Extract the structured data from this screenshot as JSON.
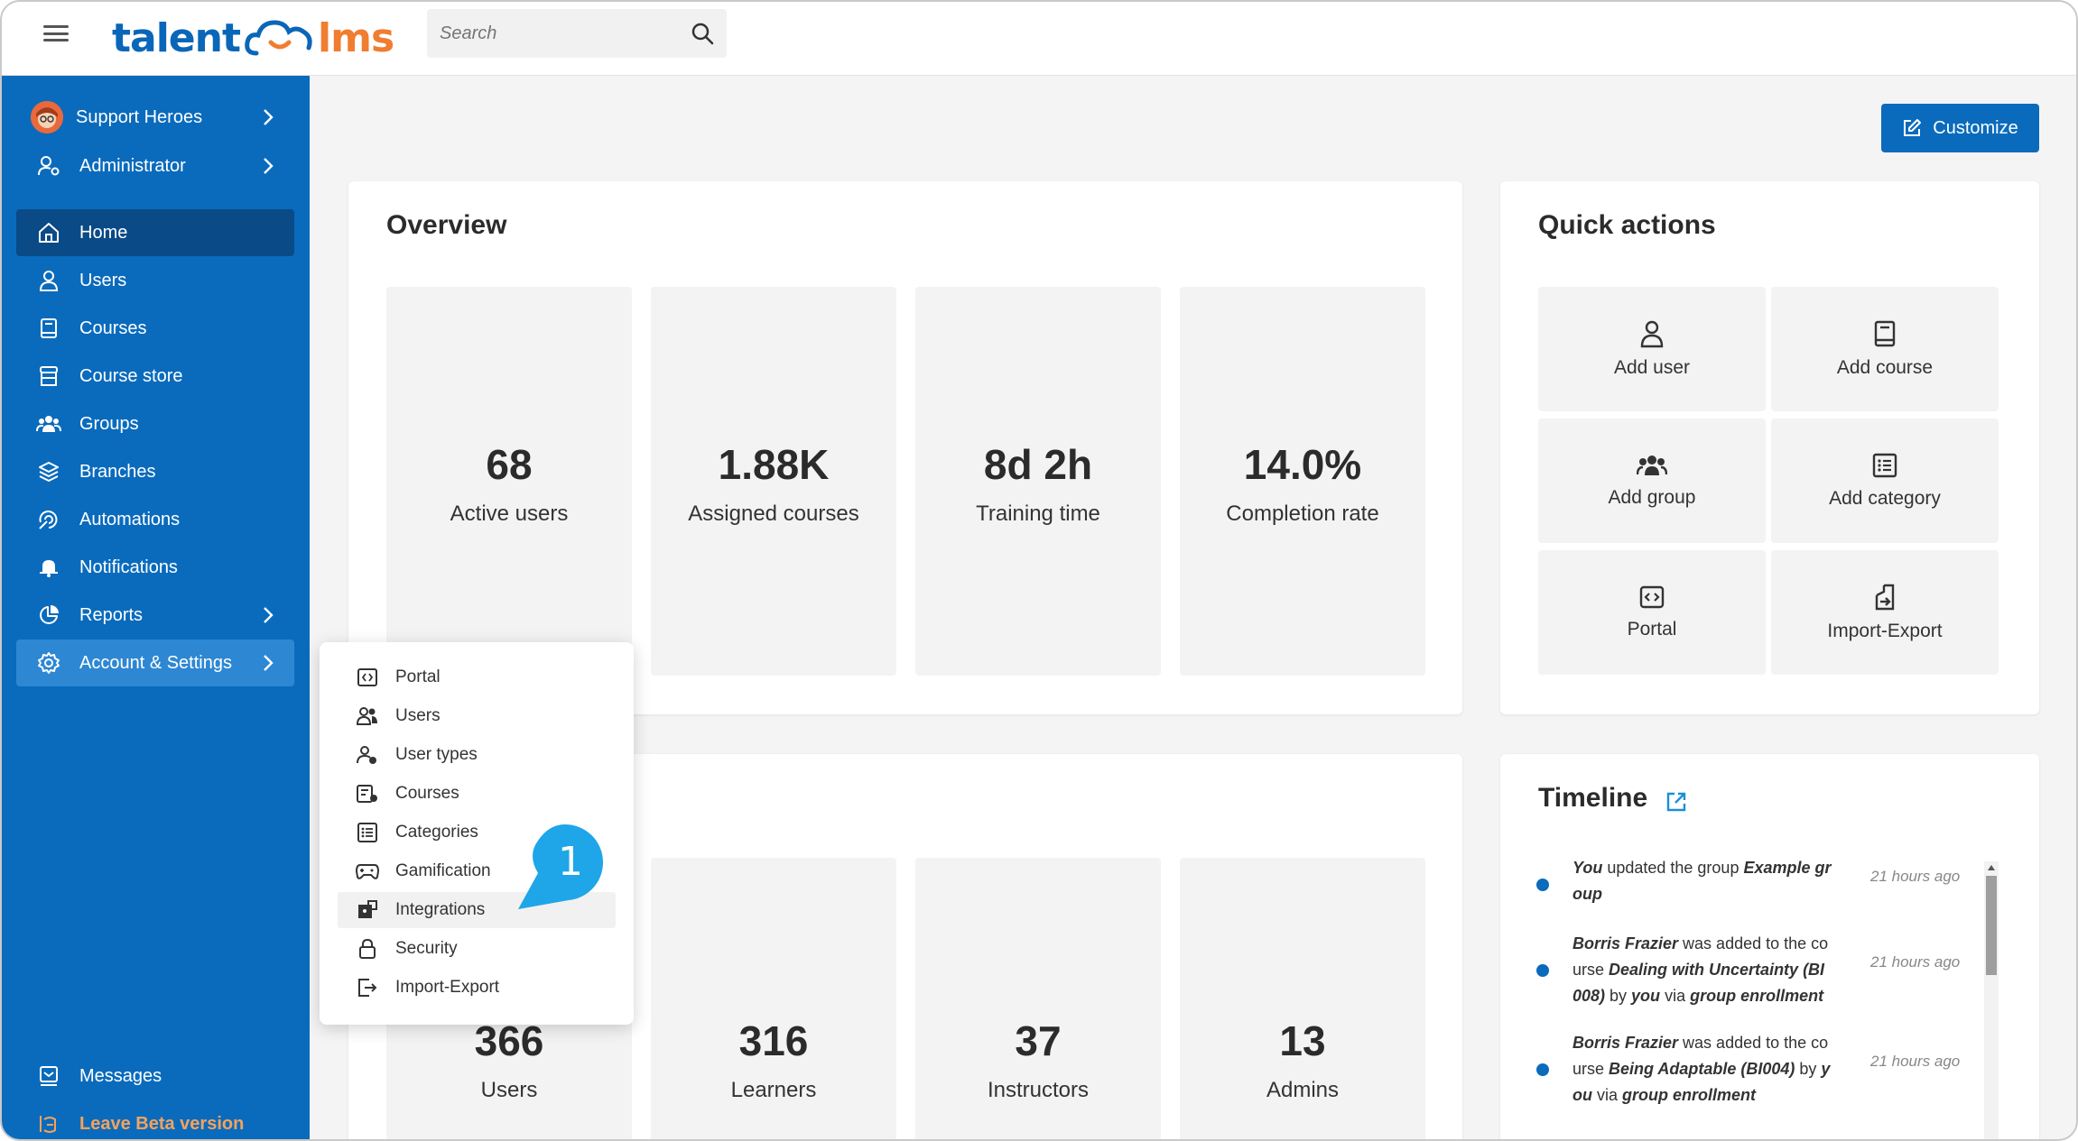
{
  "header": {
    "logo_left": "talent",
    "logo_right": "lms",
    "search_placeholder": "Search"
  },
  "sidebar": {
    "account": "Support Heroes",
    "role": "Administrator",
    "items": [
      {
        "label": "Home"
      },
      {
        "label": "Users"
      },
      {
        "label": "Courses"
      },
      {
        "label": "Course store"
      },
      {
        "label": "Groups"
      },
      {
        "label": "Branches"
      },
      {
        "label": "Automations"
      },
      {
        "label": "Notifications"
      },
      {
        "label": "Reports"
      },
      {
        "label": "Account & Settings"
      }
    ],
    "messages": "Messages",
    "beta": "Leave Beta version"
  },
  "customize_label": "Customize",
  "overview": {
    "title": "Overview",
    "stats": [
      {
        "value": "68",
        "label": "Active users"
      },
      {
        "value": "1.88K",
        "label": "Assigned courses"
      },
      {
        "value": "8d 2h",
        "label": "Training time"
      },
      {
        "value": "14.0%",
        "label": "Completion rate"
      }
    ]
  },
  "users_stats": [
    {
      "value": "366",
      "label": "Users"
    },
    {
      "value": "316",
      "label": "Learners"
    },
    {
      "value": "37",
      "label": "Instructors"
    },
    {
      "value": "13",
      "label": "Admins"
    }
  ],
  "quick_actions": {
    "title": "Quick actions",
    "items": [
      {
        "label": "Add user",
        "icon": "user-icon"
      },
      {
        "label": "Add course",
        "icon": "book-icon"
      },
      {
        "label": "Add group",
        "icon": "group-icon"
      },
      {
        "label": "Add category",
        "icon": "category-icon"
      },
      {
        "label": "Portal",
        "icon": "portal-icon"
      },
      {
        "label": "Import-Export",
        "icon": "import-export-icon"
      }
    ]
  },
  "timeline": {
    "title": "Timeline",
    "entries": [
      {
        "l1a": "You",
        "l1b": " updated the group ",
        "l1c": "Example gr",
        "l2": "oup",
        "time": "21 hours ago"
      },
      {
        "l1a": "Borris Frazier",
        "l1b": " was added to the co",
        "l2a": "urse ",
        "l2b": "Dealing with Uncertainty (BI",
        "l3a": "008)",
        "l3b": " by ",
        "l3c": "you",
        "l3d": " via ",
        "l3e": "group enrollment",
        "time": "21 hours ago"
      },
      {
        "l1a": "Borris Frazier",
        "l1b": " was added to the co",
        "l2a": "urse ",
        "l2b": "Being Adaptable (BI004)",
        "l2c": " by ",
        "l2d": "y",
        "l3a": "ou",
        "l3b": " via ",
        "l3c": "group enrollment",
        "time": "21 hours ago"
      }
    ]
  },
  "settings_menu": {
    "items": [
      {
        "label": "Portal"
      },
      {
        "label": "Users"
      },
      {
        "label": "User types"
      },
      {
        "label": "Courses"
      },
      {
        "label": "Categories"
      },
      {
        "label": "Gamification"
      },
      {
        "label": "Integrations"
      },
      {
        "label": "Security"
      },
      {
        "label": "Import-Export"
      }
    ]
  },
  "step_badge": "1",
  "colors": {
    "primary": "#0a6bbd",
    "sidebar_active": "#0a4a87",
    "accent_orange": "#f07d30",
    "badge": "#1ea6e8"
  }
}
